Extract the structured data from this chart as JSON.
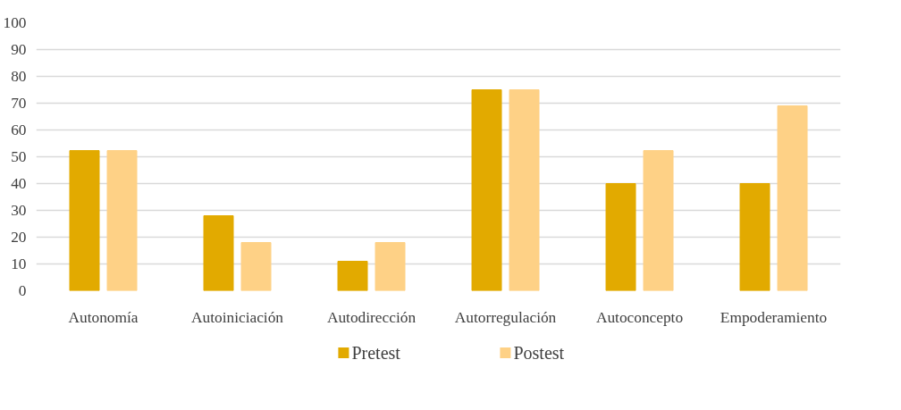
{
  "chart_data": {
    "type": "bar",
    "categories": [
      "Autonomía",
      "Autoiniciación",
      "Autodirección",
      "Autorregulación",
      "Autoconcepto",
      "Empoderamiento"
    ],
    "series": [
      {
        "name": "Pretest",
        "color": "#e2aa00",
        "values": [
          52.3,
          28,
          11,
          75,
          40,
          40
        ]
      },
      {
        "name": "Postest",
        "color": "#fed186",
        "values": [
          52.3,
          18,
          18,
          75,
          52.3,
          69
        ]
      }
    ],
    "ylim": [
      0,
      100
    ],
    "yticks": [
      0,
      10,
      20,
      30,
      40,
      50,
      60,
      70,
      80,
      90,
      100
    ],
    "grid": "y",
    "legend": "bottom"
  }
}
